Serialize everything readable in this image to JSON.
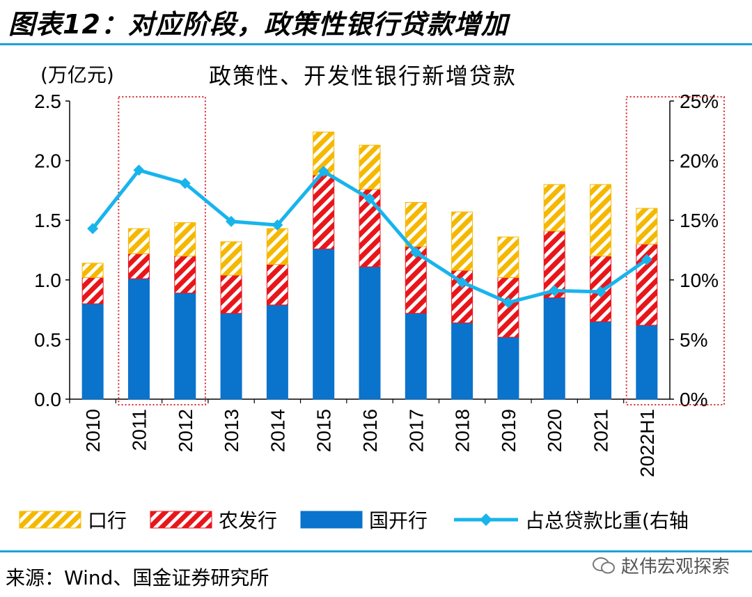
{
  "figure_title": "图表12：对应阶段，政策性银行贷款增加",
  "unit_label": "(万亿元)",
  "source": "来源：Wind、国金证券研究所",
  "watermark": "赵伟宏观探索",
  "colors": {
    "rule": "#1aa3d6",
    "guohang": "#0a73cc",
    "nongfa": "#e8161b",
    "kouhang": "#f5b800",
    "line": "#18b4ec",
    "highlight": "#d9262c"
  },
  "chart_data": {
    "type": "bar",
    "stacked": true,
    "title": "政策性、开发性银行新增贷款",
    "categories": [
      "2010",
      "2011",
      "2012",
      "2013",
      "2014",
      "2015",
      "2016",
      "2017",
      "2018",
      "2019",
      "2020",
      "2021",
      "2022H1"
    ],
    "series": [
      {
        "name": "国开行",
        "values": [
          0.8,
          1.01,
          0.89,
          0.72,
          0.79,
          1.26,
          1.11,
          0.72,
          0.64,
          0.52,
          0.85,
          0.65,
          0.62
        ]
      },
      {
        "name": "农发行",
        "values": [
          0.22,
          0.21,
          0.31,
          0.32,
          0.34,
          0.62,
          0.65,
          0.56,
          0.44,
          0.5,
          0.56,
          0.55,
          0.68
        ]
      },
      {
        "name": "口行",
        "values": [
          0.12,
          0.21,
          0.28,
          0.28,
          0.3,
          0.36,
          0.37,
          0.37,
          0.49,
          0.34,
          0.39,
          0.6,
          0.3
        ]
      }
    ],
    "line_series": {
      "name": "占总贷款比重(右轴",
      "axis": "right",
      "values": [
        14.3,
        19.2,
        18.1,
        14.9,
        14.6,
        19.1,
        16.8,
        12.3,
        9.8,
        8.1,
        9.1,
        9.0,
        11.7
      ]
    },
    "y_left": {
      "min": 0,
      "max": 2.5,
      "ticks": [
        "0.0",
        "0.5",
        "1.0",
        "1.5",
        "2.0",
        "2.5"
      ]
    },
    "y_right": {
      "min": 0,
      "max": 25,
      "ticks": [
        "0%",
        "5%",
        "10%",
        "15%",
        "20%",
        "25%"
      ]
    },
    "highlight_groups": [
      [
        "2011",
        "2012"
      ],
      [
        "2022H1"
      ]
    ],
    "legend": [
      "口行",
      "农发行",
      "国开行",
      "占总贷款比重(右轴"
    ],
    "legend_position": "bottom"
  }
}
